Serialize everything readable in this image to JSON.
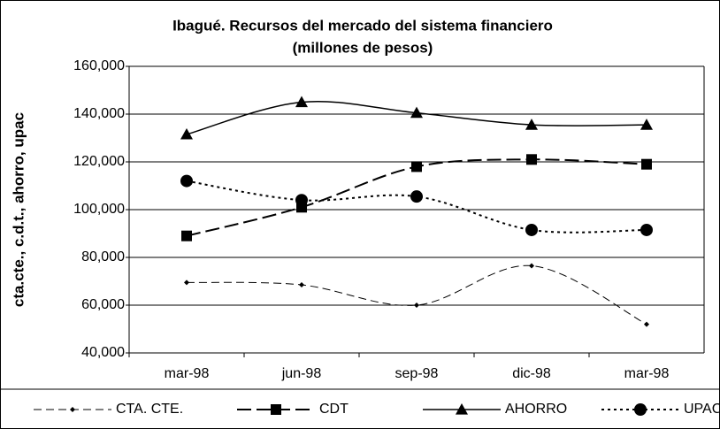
{
  "chart_data": {
    "type": "line",
    "title": "Ibagué.  Recursos del mercado del sistema financiero",
    "subtitle": "(millones de pesos)",
    "y_label": "cta.cte.,  c.d.t., ahorro, upac",
    "categories": [
      "mar-98",
      "jun-98",
      "sep-98",
      "dic-98",
      "mar-98"
    ],
    "series": [
      {
        "name": "CTA. CTE.",
        "color": "#000000",
        "values": [
          69500,
          68500,
          60000,
          76500,
          52000
        ]
      },
      {
        "name": "CDT",
        "color": "#000000",
        "values": [
          89000,
          101000,
          118000,
          121000,
          119000
        ]
      },
      {
        "name": "AHORRO",
        "color": "#000000",
        "values": [
          131500,
          145000,
          140500,
          135500,
          135500
        ]
      },
      {
        "name": "UPAC",
        "color": "#000000",
        "values": [
          112000,
          104000,
          105500,
          91500,
          91500
        ]
      }
    ],
    "ylim": [
      40000,
      160000
    ],
    "yticks": [
      {
        "value": 40000,
        "label": "40,000"
      },
      {
        "value": 60000,
        "label": "60,000"
      },
      {
        "value": 80000,
        "label": "80,000"
      },
      {
        "value": 100000,
        "label": "100,000"
      },
      {
        "value": 120000,
        "label": "120,000"
      },
      {
        "value": 140000,
        "label": "140,000"
      },
      {
        "value": 160000,
        "label": "160,000"
      }
    ],
    "grid": true,
    "legend": "bottom"
  }
}
